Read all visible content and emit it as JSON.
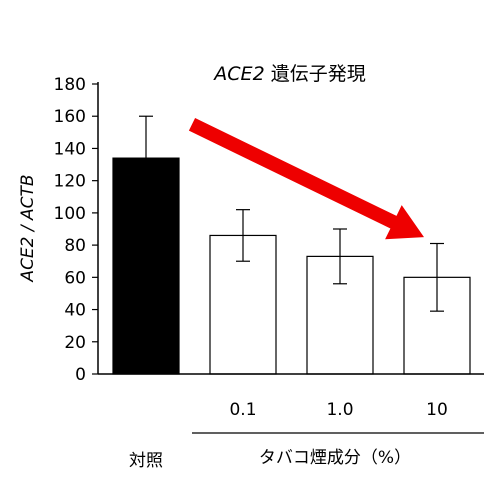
{
  "chart_data": {
    "type": "bar",
    "title_gene": "ACE2",
    "title_rest": " 遺伝子発現",
    "ylabel": "ACE2 / ACTB",
    "ylim": [
      0,
      180
    ],
    "yticks": [
      0,
      20,
      40,
      60,
      80,
      100,
      120,
      140,
      160,
      180
    ],
    "grid": false,
    "categories": [
      "対照",
      "0.1",
      "1.0",
      "10"
    ],
    "group_label": "タバコ煙成分（%）",
    "values": [
      134,
      86,
      73,
      60
    ],
    "error": [
      26,
      16,
      17,
      21
    ],
    "bar_fill": [
      "#000000",
      "#ffffff",
      "#ffffff",
      "#ffffff"
    ],
    "bar_stroke": "#000000",
    "arrow_color": "#ee0000",
    "arrow_from_value": 155,
    "arrow_to_value": 85
  }
}
